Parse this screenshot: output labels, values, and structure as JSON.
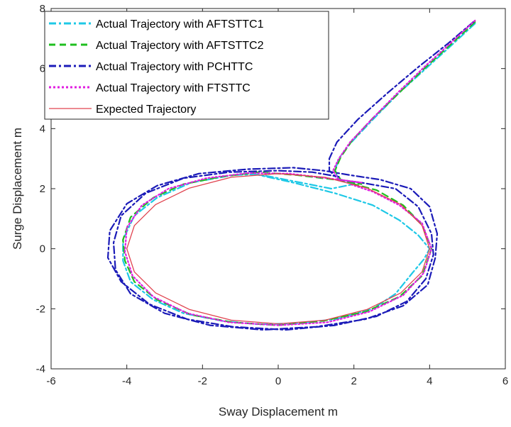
{
  "chart_data": {
    "type": "line",
    "title": "",
    "xlabel": "Sway Displacement m",
    "ylabel": "Surge Displacement m",
    "xlim": [
      -6,
      6
    ],
    "ylim": [
      -4,
      8
    ],
    "xticks": [
      -6,
      -4,
      -2,
      0,
      2,
      4,
      6
    ],
    "yticks": [
      -4,
      -2,
      0,
      2,
      4,
      6,
      8
    ],
    "legend_position": "top-left",
    "series": [
      {
        "name": "Actual Trajectory with AFTSTTC1",
        "color": "#1ec8e6",
        "style": "dash-dot",
        "points": [
          [
            5.2,
            7.5
          ],
          [
            4.6,
            6.8
          ],
          [
            3.9,
            6.0
          ],
          [
            3.2,
            5.2
          ],
          [
            2.5,
            4.3
          ],
          [
            1.9,
            3.5
          ],
          [
            1.6,
            3.0
          ],
          [
            1.5,
            2.6
          ],
          [
            1.6,
            2.3
          ],
          [
            2.0,
            2.15
          ],
          [
            1.4,
            2.0
          ],
          [
            0.6,
            2.2
          ],
          [
            -0.2,
            2.4
          ],
          [
            -0.6,
            2.48
          ],
          [
            0.4,
            2.2
          ],
          [
            1.5,
            1.85
          ],
          [
            2.5,
            1.45
          ],
          [
            3.2,
            0.95
          ],
          [
            3.7,
            0.45
          ],
          [
            4.0,
            0.0
          ],
          [
            3.85,
            -0.35
          ],
          [
            3.55,
            -0.8
          ],
          [
            3.1,
            -1.5
          ],
          [
            2.5,
            -2.0
          ],
          [
            1.5,
            -2.35
          ],
          [
            0.5,
            -2.48
          ],
          [
            -0.5,
            -2.52
          ],
          [
            -1.5,
            -2.4
          ],
          [
            -2.5,
            -2.15
          ],
          [
            -3.3,
            -1.7
          ],
          [
            -3.9,
            -1.1
          ],
          [
            -4.1,
            -0.4
          ],
          [
            -4.1,
            0.3
          ],
          [
            -3.8,
            1.1
          ],
          [
            -3.2,
            1.7
          ],
          [
            -2.3,
            2.2
          ],
          [
            -1.2,
            2.45
          ],
          [
            -0.6,
            2.48
          ]
        ]
      },
      {
        "name": "Actual Trajectory with AFTSTTC2",
        "color": "#1fbf1f",
        "style": "dashed",
        "points": [
          [
            5.2,
            7.55
          ],
          [
            4.6,
            6.85
          ],
          [
            3.9,
            6.05
          ],
          [
            3.2,
            5.2
          ],
          [
            2.5,
            4.35
          ],
          [
            1.95,
            3.6
          ],
          [
            1.65,
            3.05
          ],
          [
            1.5,
            2.6
          ],
          [
            1.65,
            2.3
          ],
          [
            2.2,
            2.15
          ],
          [
            1.5,
            2.3
          ],
          [
            0.5,
            2.45
          ],
          [
            -0.5,
            2.55
          ],
          [
            -1.5,
            2.4
          ],
          [
            -2.5,
            2.15
          ],
          [
            -3.3,
            1.7
          ],
          [
            -3.9,
            1.05
          ],
          [
            -4.1,
            0.3
          ],
          [
            -4.05,
            -0.4
          ],
          [
            -3.8,
            -1.1
          ],
          [
            -3.2,
            -1.7
          ],
          [
            -2.3,
            -2.2
          ],
          [
            -1.2,
            -2.45
          ],
          [
            0.0,
            -2.55
          ],
          [
            1.2,
            -2.4
          ],
          [
            2.3,
            -2.1
          ],
          [
            3.2,
            -1.6
          ],
          [
            3.8,
            -0.9
          ],
          [
            4.05,
            0.0
          ],
          [
            3.8,
            0.8
          ],
          [
            3.3,
            1.45
          ],
          [
            2.6,
            1.95
          ],
          [
            2.0,
            2.15
          ]
        ]
      },
      {
        "name": "Actual Trajectory with PCHTTC",
        "color": "#1b1bb8",
        "style": "dash-dot",
        "points": [
          [
            5.15,
            7.55
          ],
          [
            4.5,
            6.85
          ],
          [
            3.7,
            6.05
          ],
          [
            2.9,
            5.2
          ],
          [
            2.1,
            4.3
          ],
          [
            1.55,
            3.55
          ],
          [
            1.35,
            3.0
          ],
          [
            1.35,
            2.6
          ],
          [
            1.6,
            2.3
          ],
          [
            2.2,
            2.2
          ],
          [
            3.1,
            2.0
          ],
          [
            3.7,
            1.4
          ],
          [
            4.05,
            0.5
          ],
          [
            4.1,
            -0.2
          ],
          [
            3.9,
            -1.0
          ],
          [
            3.4,
            -1.75
          ],
          [
            2.6,
            -2.25
          ],
          [
            1.5,
            -2.55
          ],
          [
            0.2,
            -2.7
          ],
          [
            -1.2,
            -2.6
          ],
          [
            -2.4,
            -2.35
          ],
          [
            -3.4,
            -1.85
          ],
          [
            -4.15,
            -1.1
          ],
          [
            -4.5,
            -0.3
          ],
          [
            -4.45,
            0.6
          ],
          [
            -4.0,
            1.5
          ],
          [
            -3.2,
            2.1
          ],
          [
            -2.1,
            2.5
          ],
          [
            -0.8,
            2.65
          ],
          [
            0.4,
            2.7
          ],
          [
            1.2,
            2.6
          ],
          [
            1.9,
            2.45
          ],
          [
            2.7,
            2.3
          ],
          [
            3.5,
            2.0
          ],
          [
            4.0,
            1.4
          ],
          [
            4.2,
            0.5
          ],
          [
            4.15,
            -0.3
          ],
          [
            3.95,
            -1.2
          ],
          [
            3.3,
            -1.9
          ],
          [
            2.3,
            -2.35
          ],
          [
            1.0,
            -2.6
          ],
          [
            -0.4,
            -2.7
          ],
          [
            -1.8,
            -2.55
          ],
          [
            -3.0,
            -2.15
          ],
          [
            -3.9,
            -1.5
          ],
          [
            -4.3,
            -0.7
          ],
          [
            -4.35,
            0.2
          ],
          [
            -4.15,
            1.1
          ],
          [
            -3.5,
            1.85
          ],
          [
            -2.5,
            2.35
          ],
          [
            -1.3,
            2.55
          ],
          [
            0.0,
            2.6
          ],
          [
            0.9,
            2.55
          ],
          [
            1.6,
            2.4
          ]
        ]
      },
      {
        "name": "Actual Trajectory with FTSTTC",
        "color": "#e01ee0",
        "style": "dotted",
        "points": [
          [
            5.2,
            7.6
          ],
          [
            4.6,
            6.9
          ],
          [
            3.9,
            6.1
          ],
          [
            3.2,
            5.25
          ],
          [
            2.5,
            4.35
          ],
          [
            1.9,
            3.55
          ],
          [
            1.6,
            3.0
          ],
          [
            1.45,
            2.6
          ],
          [
            1.6,
            2.3
          ],
          [
            2.2,
            2.2
          ],
          [
            1.3,
            2.35
          ],
          [
            0.3,
            2.5
          ],
          [
            -0.8,
            2.52
          ],
          [
            -1.9,
            2.35
          ],
          [
            -2.9,
            2.0
          ],
          [
            -3.6,
            1.45
          ],
          [
            -4.0,
            0.7
          ],
          [
            -4.05,
            -0.1
          ],
          [
            -3.85,
            -0.9
          ],
          [
            -3.3,
            -1.6
          ],
          [
            -2.4,
            -2.15
          ],
          [
            -1.3,
            -2.45
          ],
          [
            0.0,
            -2.55
          ],
          [
            1.3,
            -2.45
          ],
          [
            2.4,
            -2.1
          ],
          [
            3.3,
            -1.55
          ],
          [
            3.85,
            -0.8
          ],
          [
            4.05,
            0.0
          ],
          [
            3.8,
            0.85
          ],
          [
            3.2,
            1.45
          ],
          [
            2.5,
            1.9
          ],
          [
            1.9,
            2.15
          ]
        ]
      },
      {
        "name": "Expected Trajectory",
        "color": "#e0434f",
        "style": "solid",
        "points": [
          [
            4.0,
            0.0
          ],
          [
            3.8,
            0.77
          ],
          [
            3.24,
            1.47
          ],
          [
            2.35,
            2.02
          ],
          [
            1.24,
            2.38
          ],
          [
            0.0,
            2.5
          ],
          [
            -1.24,
            2.38
          ],
          [
            -2.35,
            2.02
          ],
          [
            -3.24,
            1.47
          ],
          [
            -3.8,
            0.77
          ],
          [
            -4.0,
            0.0
          ],
          [
            -3.8,
            -0.77
          ],
          [
            -3.24,
            -1.47
          ],
          [
            -2.35,
            -2.02
          ],
          [
            -1.24,
            -2.38
          ],
          [
            0.0,
            -2.5
          ],
          [
            1.24,
            -2.38
          ],
          [
            2.35,
            -2.02
          ],
          [
            3.24,
            -1.47
          ],
          [
            3.8,
            -0.77
          ],
          [
            4.0,
            0.0
          ]
        ]
      }
    ]
  }
}
